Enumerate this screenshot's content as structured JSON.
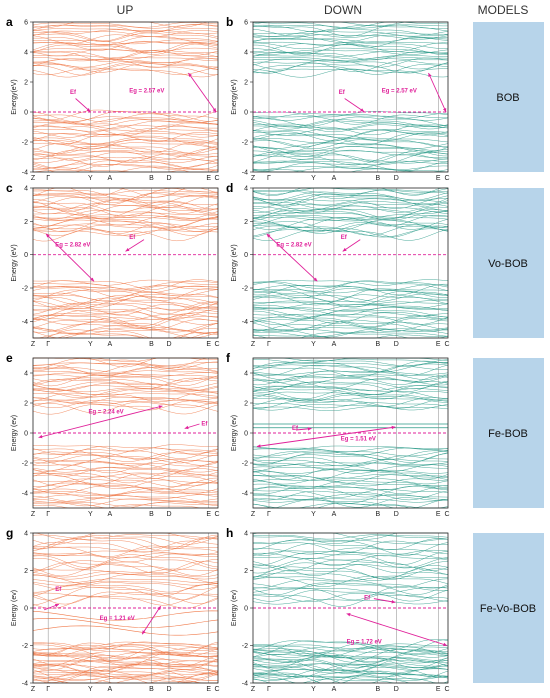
{
  "headers": {
    "up": "UP",
    "down": "DOWN",
    "models": "MODELS"
  },
  "colors": {
    "up": "#f07a4a",
    "down": "#2a9a88",
    "fermi": "#e0219a",
    "model_box": "#b7d4ea"
  },
  "kpath": [
    "Z",
    "Γ",
    "Y",
    "A",
    "B",
    "D",
    "E",
    "C"
  ],
  "rows": [
    {
      "model": "BOB",
      "ylabel": "Energy(eV)",
      "yticks": [
        -4,
        -2,
        0,
        2,
        4,
        6
      ],
      "ylim": [
        -4,
        6
      ],
      "panels": [
        {
          "label": "a",
          "spin": "up",
          "ef": "Ef",
          "gap": "Eg = 2.57 eV"
        },
        {
          "label": "b",
          "spin": "down",
          "ef": "Ef",
          "gap": "Eg = 2.57 eV"
        }
      ]
    },
    {
      "model": "Vo-BOB",
      "ylabel": "Energy (eV)",
      "yticks": [
        -4,
        -2,
        0,
        2,
        4
      ],
      "ylim": [
        -5,
        4
      ],
      "panels": [
        {
          "label": "c",
          "spin": "up",
          "ef": "Ef",
          "gap": "Eg = 2.82 eV"
        },
        {
          "label": "d",
          "spin": "down",
          "ef": "Ef",
          "gap": "Eg = 2.82 eV"
        }
      ]
    },
    {
      "model": "Fe-BOB",
      "ylabel": "Energy (ev)",
      "yticks": [
        -4,
        -2,
        0,
        2,
        4
      ],
      "ylim": [
        -5,
        5
      ],
      "panels": [
        {
          "label": "e",
          "spin": "up",
          "ef": "Ef",
          "gap": "Eg = 2.24 eV"
        },
        {
          "label": "f",
          "spin": "down",
          "ef": "Ef",
          "gap": "Eg = 1.51 eV"
        }
      ]
    },
    {
      "model": "Fe-Vo-BOB",
      "ylabel": "Energy (ev)",
      "yticks": [
        -4,
        -2,
        0,
        2,
        4
      ],
      "ylim": [
        -4,
        4
      ],
      "panels": [
        {
          "label": "g",
          "spin": "up",
          "ef": "Ef",
          "gap": "Eg = 1.21 eV"
        },
        {
          "label": "h",
          "spin": "down",
          "ef": "Ef",
          "gap": "Eg = 1.72 eV"
        }
      ]
    }
  ]
}
